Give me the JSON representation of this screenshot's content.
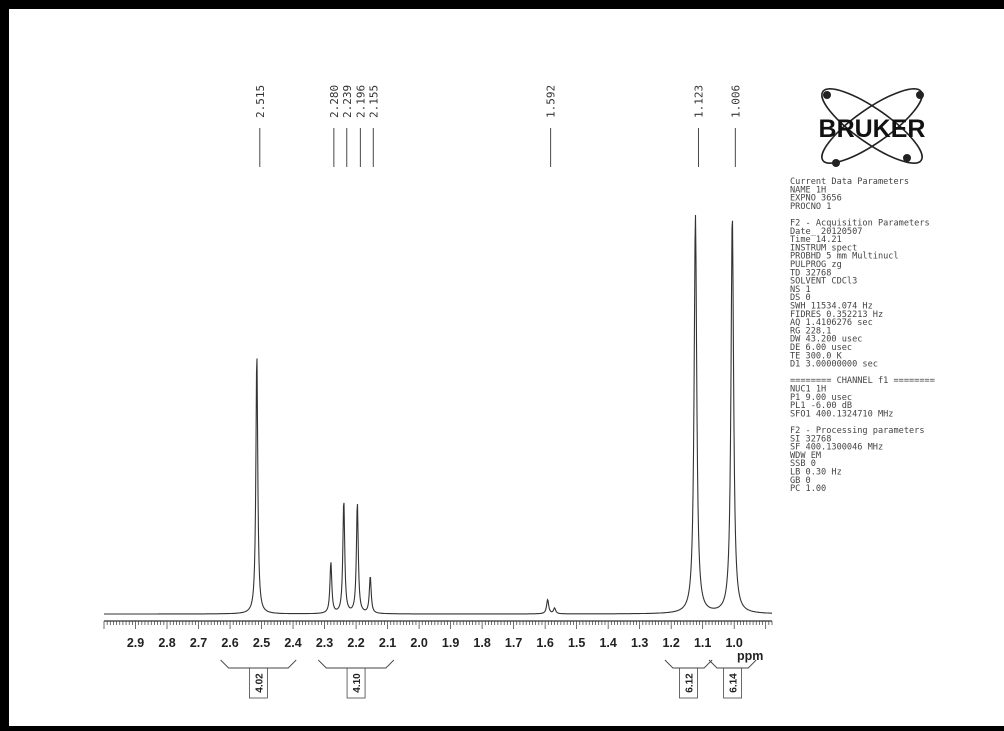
{
  "chart_data": {
    "type": "line",
    "title": "",
    "xlabel": "ppm",
    "ylabel": "",
    "xlim": [
      3.0,
      0.88
    ],
    "x_reversed": true,
    "ticks": [
      "2.9",
      "2.8",
      "2.7",
      "2.6",
      "2.5",
      "2.4",
      "2.3",
      "2.2",
      "2.1",
      "2.0",
      "1.9",
      "1.8",
      "1.7",
      "1.6",
      "1.5",
      "1.4",
      "1.3",
      "1.2",
      "1.1",
      "1.0"
    ],
    "peaks": [
      {
        "ppm": 2.515,
        "height": 0.92,
        "width": 0.0035
      },
      {
        "ppm": 2.28,
        "height": 0.18,
        "width": 0.0035
      },
      {
        "ppm": 2.239,
        "height": 0.4,
        "width": 0.0035
      },
      {
        "ppm": 2.196,
        "height": 0.39,
        "width": 0.0035
      },
      {
        "ppm": 2.155,
        "height": 0.13,
        "width": 0.0035
      },
      {
        "ppm": 1.592,
        "height": 0.05,
        "width": 0.004
      },
      {
        "ppm": 1.57,
        "height": 0.02,
        "width": 0.004
      },
      {
        "ppm": 1.123,
        "height": 1.4,
        "width": 0.005
      },
      {
        "ppm": 1.006,
        "height": 1.4,
        "width": 0.005
      }
    ],
    "peak_labels": [
      "2.515",
      "2.280",
      "2.239",
      "2.196",
      "2.155",
      "1.592",
      "1.123",
      "1.006"
    ],
    "integrals": [
      {
        "from": 2.63,
        "to": 2.39,
        "value": "4.02"
      },
      {
        "from": 2.32,
        "to": 2.08,
        "value": "4.10"
      },
      {
        "from": 1.22,
        "to": 1.07,
        "value": "6.12"
      },
      {
        "from": 1.08,
        "to": 0.93,
        "value": "6.14"
      }
    ]
  },
  "logo": {
    "text": "BRUKER"
  },
  "parameters": [
    "Current Data Parameters",
    "NAME            1H",
    "EXPNO         3656",
    "PROCNO           1",
    "",
    "F2 - Acquisition Parameters",
    "Date_       20120507",
    "Time           14.21",
    "INSTRUM        spect",
    "PROBHD   5 mm Multinucl",
    "PULPROG           zg",
    "TD             32768",
    "SOLVENT        CDCl3",
    "NS                 1",
    "DS                 0",
    "SWH      11534.074 Hz",
    "FIDRES    0.352213 Hz",
    "AQ       1.4106276 sec",
    "RG             228.1",
    "DW           43.200 usec",
    "DE             6.00 usec",
    "TE            300.0 K",
    "D1       3.00000000 sec",
    "",
    "======== CHANNEL f1 ========",
    "NUC1              1H",
    "P1             9.00 usec",
    "PL1           -6.00 dB",
    "SFO1   400.1324710 MHz",
    "",
    "F2 - Processing parameters",
    "SI             32768",
    "SF      400.1300046 MHz",
    "WDW               EM",
    "SSB                0",
    "LB              0.30 Hz",
    "GB                 0",
    "PC              1.00"
  ]
}
